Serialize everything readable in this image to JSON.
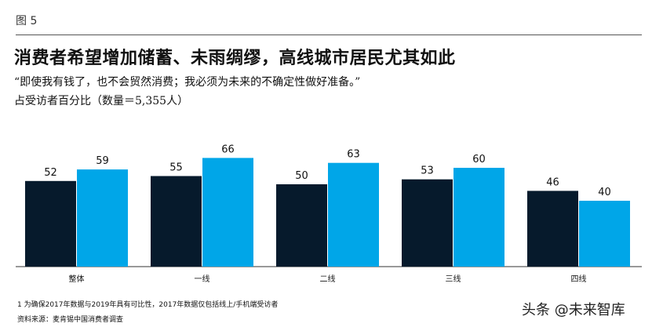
{
  "header": {
    "figure_label": "图 5",
    "title": "消费者希望增加储蓄、未雨绸缪，高线城市居民尤其如此",
    "quote": "“即使我有钱了，也不会贸然消费；我必须为未来的不确定性做好准备。”",
    "subtitle": "占受访者百分比（数量＝5,355人）"
  },
  "chart_data": {
    "type": "bar",
    "categories": [
      "整体",
      "一线",
      "二线",
      "三线",
      "四线"
    ],
    "series": [
      {
        "values": [
          52,
          55,
          50,
          53,
          46
        ],
        "color": "#061a2c"
      },
      {
        "values": [
          59,
          66,
          63,
          60,
          40
        ],
        "color": "#00a6e8"
      }
    ],
    "ylim": [
      0,
      100
    ],
    "grid": false,
    "legend": "none"
  },
  "footer": {
    "note": "1 为确保2017年数据与2019年具有可比性，2017年数据仅包括线上/手机端受访者",
    "source": "资料来源：麦肯锡中国消费者调查",
    "watermark": "头条 @未来智库"
  }
}
